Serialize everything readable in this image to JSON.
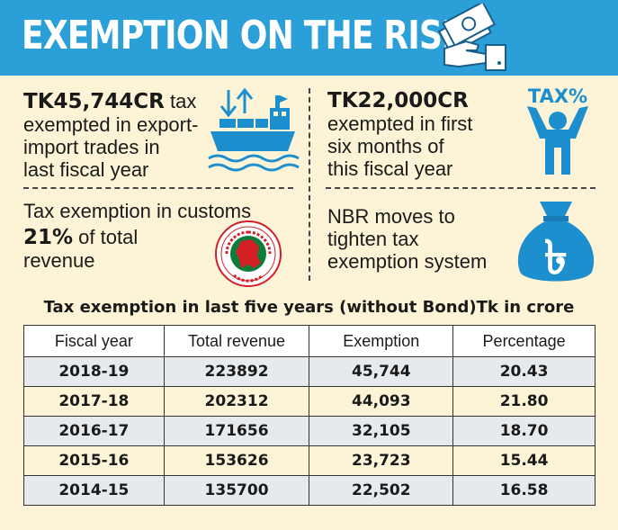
{
  "header": {
    "title": "EXEMPTION ON THE RISE"
  },
  "facts": {
    "export_import": {
      "highlight": "TK45,744CR",
      "line1_rest": " tax",
      "line2": "exempted in export-",
      "line3": "import trades in",
      "line4": "last fiscal year"
    },
    "six_months": {
      "highlight": "TK22,000CR",
      "line2": "exempted in first",
      "line3": "six months of",
      "line4": "this fiscal year"
    },
    "customs": {
      "line1": "Tax exemption in customs",
      "highlight": "21%",
      "line2_rest": " of total",
      "line3": "revenue"
    },
    "nbr": {
      "line1": "NBR moves to",
      "line2": "tighten tax",
      "line3": "exemption system"
    }
  },
  "icons": {
    "tax_label": "TAX%",
    "taka_sign": "৳"
  },
  "table": {
    "title": "Tax exemption in last five years (without Bond)Tk in crore",
    "columns": [
      "Fiscal year",
      "Total revenue",
      "Exemption",
      "Percentage"
    ],
    "rows": [
      [
        "2018-19",
        "223892",
        "45,744",
        "20.43"
      ],
      [
        "2017-18",
        "202312",
        "44,093",
        "21.80"
      ],
      [
        "2016-17",
        "171656",
        "32,105",
        "18.70"
      ],
      [
        "2015-16",
        "153626",
        "23,723",
        "15.44"
      ],
      [
        "2014-15",
        "135700",
        "22,502",
        "16.58"
      ]
    ]
  },
  "colors": {
    "header_bg": "#2a9fd8",
    "page_bg": "#fdf3d6",
    "icon_blue": "#1d8fcf",
    "seal_red": "#d32027",
    "seal_green": "#0a7d3b"
  }
}
